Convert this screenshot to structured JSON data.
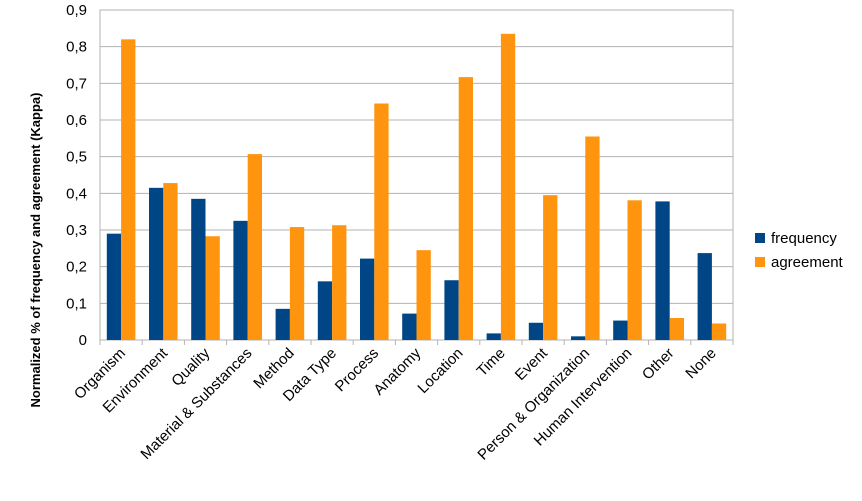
{
  "chart_data": {
    "type": "bar",
    "title": "",
    "xlabel": "",
    "ylabel": "Normalized % of frequency and agreement (Kappa)",
    "ylim": [
      0,
      0.9
    ],
    "yticks": [
      "0",
      "0,1",
      "0,2",
      "0,3",
      "0,4",
      "0,5",
      "0,6",
      "0,7",
      "0,8",
      "0,9"
    ],
    "grid": true,
    "legend_position": "right",
    "categories": [
      "Organism",
      "Environment",
      "Quality",
      "Material & Substances",
      "Method",
      "Data Type",
      "Process",
      "Anatomy",
      "Location",
      "Time",
      "Event",
      "Person & Organization",
      "Human Intervention",
      "Other",
      "None"
    ],
    "series": [
      {
        "name": "frequency",
        "color": "#004586",
        "values": [
          0.29,
          0.415,
          0.385,
          0.325,
          0.085,
          0.16,
          0.222,
          0.072,
          0.163,
          0.018,
          0.047,
          0.01,
          0.053,
          0.378,
          0.237
        ]
      },
      {
        "name": "agreement",
        "color": "#ff950e",
        "values": [
          0.82,
          0.428,
          0.283,
          0.507,
          0.308,
          0.313,
          0.645,
          0.245,
          0.717,
          0.835,
          0.395,
          0.555,
          0.381,
          0.06,
          0.045
        ]
      }
    ]
  }
}
